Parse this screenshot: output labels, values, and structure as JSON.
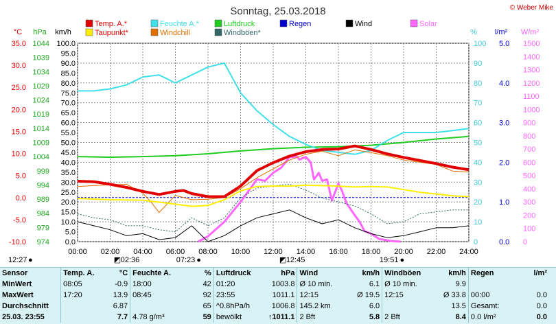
{
  "title": "Sonntag, 25.03.2018",
  "copyright": "© Weber Mike",
  "legend": [
    {
      "label": "Temp. A.*",
      "color": "#e00000"
    },
    {
      "label": "Feuchte A.*",
      "color": "#40e0e8"
    },
    {
      "label": "Luftdruck",
      "color": "#20cc20"
    },
    {
      "label": "Regen",
      "color": "#0000cc"
    },
    {
      "label": "Wind",
      "color": "#000000"
    },
    {
      "label": "Solar",
      "color": "#ff66ff"
    },
    {
      "label": "Taupunkt*",
      "color": "#ffee00"
    },
    {
      "label": "Windchill",
      "color": "#e07000"
    },
    {
      "label": "Windböen*",
      "color": "#336666"
    }
  ],
  "axes": {
    "temp_unit": "°C",
    "press_unit": "hPa",
    "wind_unit": "km/h",
    "hum_unit": "%",
    "rain_unit": "l/m²",
    "solar_unit": "W/m²",
    "temp_ticks": [
      "35.0",
      "30.0",
      "25.0",
      "20.0",
      "15.0",
      "10.0",
      "5.0",
      "0.0",
      "-5.0",
      "-10.0"
    ],
    "press_ticks": [
      "1044",
      "1039",
      "1034",
      "1029",
      "1024",
      "1019",
      "1014",
      "1009",
      "1004",
      "999",
      "994",
      "989",
      "984",
      "979",
      "974"
    ],
    "wind_ticks": [
      "100.0",
      "95.0",
      "90.0",
      "85.0",
      "80.0",
      "75.0",
      "70.0",
      "65.0",
      "60.0",
      "55.0",
      "50.0",
      "45.0",
      "40.0",
      "35.0",
      "30.0",
      "25.0",
      "20.0",
      "15.0",
      "10.0",
      "5.0",
      "0.0"
    ],
    "hum_ticks": [
      "100",
      "90",
      "80",
      "70",
      "60",
      "50",
      "40",
      "30",
      "20",
      "10",
      "0"
    ],
    "rain_ticks": [
      "5.0",
      "4.0",
      "3.0",
      "2.0",
      "1.0",
      "0.0"
    ],
    "solar_ticks": [
      "1500",
      "1400",
      "1300",
      "1200",
      "1100",
      "1000",
      "900",
      "800",
      "700",
      "600",
      "500",
      "400",
      "300",
      "200",
      "100",
      "0"
    ],
    "x_ticks": [
      "00:00",
      "02:00",
      "04:00",
      "06:00",
      "08:00",
      "10:00",
      "12:00",
      "14:00",
      "16:00",
      "18:00",
      "20:00",
      "22:00",
      "24:00"
    ]
  },
  "events": {
    "moonset": "12:27",
    "moonset_time_2": "02:36",
    "sunrise": "07:23",
    "moonrise": "12:45",
    "sunset": "19:51"
  },
  "chart_data": {
    "type": "line",
    "x_unit": "hour",
    "ylim_temp": [
      -10,
      35
    ],
    "ylim_pressure": [
      974,
      1044
    ],
    "ylim_wind": [
      0,
      100
    ],
    "ylim_humidity": [
      0,
      100
    ],
    "ylim_rain": [
      0,
      5
    ],
    "ylim_solar": [
      0,
      1500
    ],
    "series": [
      {
        "name": "Temp. A.*",
        "axis": "temp",
        "x": [
          0,
          1,
          2,
          3,
          4,
          5,
          6,
          6.5,
          7,
          8,
          9,
          10,
          11,
          12,
          13,
          14,
          15,
          16,
          17,
          18,
          19,
          20,
          21,
          22,
          23,
          24
        ],
        "values": [
          3.7,
          3.6,
          3.0,
          2.3,
          1.4,
          0.7,
          1.4,
          1.6,
          0.9,
          0.2,
          0.2,
          2.6,
          6.1,
          7.9,
          9.4,
          10.4,
          10.9,
          11.0,
          11.7,
          10.9,
          9.9,
          9.1,
          8.4,
          7.7,
          6.9,
          6.3
        ]
      },
      {
        "name": "Feuchte A.*",
        "axis": "humidity",
        "x": [
          0,
          1,
          2,
          3,
          4,
          5,
          6,
          7,
          8,
          9,
          10,
          11,
          12,
          13,
          14,
          15,
          16,
          17,
          18,
          19,
          20,
          21,
          22,
          23,
          24
        ],
        "values": [
          76,
          76,
          77,
          79,
          83,
          84,
          80,
          84,
          88,
          90,
          75,
          66,
          59,
          53,
          49,
          46,
          45,
          44,
          46,
          51,
          55,
          55,
          55,
          56,
          57
        ]
      },
      {
        "name": "Luftdruck",
        "axis": "pressure",
        "x": [
          0,
          2,
          4,
          6,
          8,
          10,
          12,
          14,
          16,
          18,
          20,
          22,
          24
        ],
        "values": [
          1004.0,
          1003.8,
          1004.0,
          1004.3,
          1005.0,
          1006.0,
          1006.8,
          1007.3,
          1007.5,
          1008.0,
          1009.0,
          1010.2,
          1011.1
        ]
      },
      {
        "name": "Taupunkt*",
        "axis": "temp",
        "x": [
          0,
          2,
          4,
          6,
          7,
          8,
          9,
          10,
          11,
          12,
          13,
          14,
          15,
          16,
          17,
          18,
          19,
          20,
          21,
          22,
          23,
          24
        ],
        "values": [
          -0.2,
          -0.5,
          -0.6,
          -1.5,
          -2.0,
          -1.8,
          -0.5,
          1.5,
          2.5,
          2.6,
          2.6,
          2.8,
          2.7,
          2.6,
          2.4,
          2.5,
          2.4,
          1.8,
          1.2,
          0.8,
          0.4,
          0.2
        ]
      },
      {
        "name": "Windchill",
        "axis": "temp",
        "x": [
          0,
          1,
          2,
          3,
          3.5,
          4,
          4.5,
          5,
          6,
          7,
          8,
          9,
          10,
          11,
          12,
          13,
          14,
          15,
          16,
          17,
          18,
          19,
          20,
          21,
          22,
          23,
          24
        ],
        "values": [
          2.5,
          2.7,
          2.9,
          3.0,
          2.0,
          1.0,
          -1.0,
          -3.4,
          0.5,
          -0.5,
          -0.4,
          0.0,
          2.0,
          4.5,
          6.5,
          8.5,
          9.8,
          10.5,
          9.5,
          10.8,
          10.2,
          9.5,
          8.5,
          8.0,
          7.5,
          6.0,
          5.8
        ]
      },
      {
        "name": "Wind",
        "axis": "wind",
        "x": [
          0,
          1,
          2,
          3,
          4,
          5,
          6,
          7,
          8,
          9,
          10,
          11,
          12,
          13,
          14,
          15,
          16,
          17,
          18,
          19,
          20,
          21,
          22,
          23,
          24
        ],
        "values": [
          10,
          8,
          6,
          3,
          4,
          1,
          2,
          8,
          0,
          3,
          8,
          12,
          14,
          16,
          12,
          9,
          11,
          7,
          4,
          2,
          3,
          5,
          7,
          7,
          8
        ]
      },
      {
        "name": "Windböen*",
        "axis": "wind",
        "x": [
          0,
          1,
          2,
          3,
          4,
          5,
          6,
          7,
          8,
          9,
          10,
          11,
          12,
          13,
          14,
          15,
          16,
          17,
          18,
          19,
          20,
          21,
          22,
          23,
          24
        ],
        "values": [
          14,
          12,
          11,
          8,
          8,
          6,
          5,
          12,
          8,
          12,
          22,
          27,
          28,
          29,
          26,
          22,
          20,
          18,
          14,
          9,
          10,
          14,
          15,
          16,
          16
        ]
      },
      {
        "name": "Solar",
        "axis": "solar",
        "x": [
          7.4,
          8,
          9,
          10,
          11,
          11.5,
          12,
          12.5,
          13,
          13.5,
          13.6,
          14,
          14.3,
          14.5,
          14.8,
          15,
          15.3,
          15.6,
          16,
          16.2,
          16.5,
          17,
          17.3,
          17.6,
          18,
          18.5,
          19.2,
          19.8
        ],
        "values": [
          0,
          40,
          150,
          300,
          470,
          460,
          520,
          560,
          640,
          640,
          620,
          640,
          600,
          470,
          520,
          460,
          470,
          310,
          440,
          390,
          290,
          200,
          150,
          80,
          60,
          20,
          5,
          0
        ]
      },
      {
        "name": "Regen",
        "axis": "rain",
        "x": [
          0,
          24
        ],
        "values": [
          0,
          0
        ]
      }
    ]
  },
  "stats": {
    "headers": [
      "Sensor",
      "Temp. A.",
      "°C",
      "Feuchte A.",
      "%",
      "Luftdruck",
      "hPa",
      "Wind",
      "km/h",
      "Windböen",
      "km/h",
      "Regen",
      "l/m²"
    ],
    "rows": [
      {
        "label": "MinWert",
        "cells": [
          "08:05",
          "-0.9",
          "18:00",
          "42",
          "01:20",
          "1003.8",
          "Ø 10 min.",
          "6.1",
          "Ø 10 min.",
          "9.9",
          "",
          ""
        ]
      },
      {
        "label": "MaxWert",
        "cells": [
          "17:20",
          "13.9",
          "08:45",
          "92",
          "23:55",
          "1011.1",
          "12:15",
          "Ø 19.5",
          "12:15",
          "Ø 33.8",
          "00:00",
          "0.0"
        ]
      },
      {
        "label": "Durchschnitt",
        "cells": [
          "",
          "6.87",
          "",
          "65",
          "^0.8hPa/h",
          "1006.8",
          "145.2 km",
          "6.0",
          "",
          "13.5",
          "Gesamt:",
          "0.0"
        ]
      },
      {
        "label": "25.03. 23:55",
        "cells": [
          "",
          "7.7",
          "4.78 g/m³",
          "59",
          "bewölkt",
          "↑1011.1",
          "2 Bft",
          "5.8",
          "2 Bft",
          "8.4",
          "0.0 l/m²",
          "0.0"
        ]
      }
    ]
  }
}
